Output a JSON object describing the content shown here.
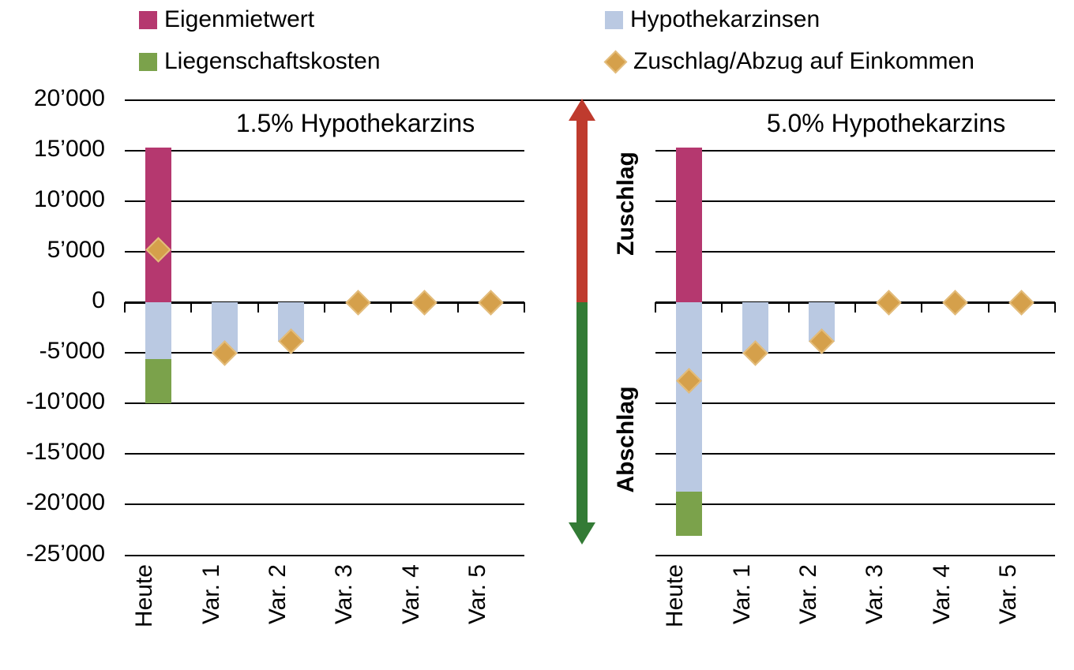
{
  "legend": {
    "items": [
      {
        "label": "Eigenmietwert",
        "swatch": "square",
        "color": "#b5386f"
      },
      {
        "label": "Liegenschaftskosten",
        "swatch": "square",
        "color": "#7ba24b"
      },
      {
        "label": "Hypothekarzinsen",
        "swatch": "square",
        "color": "#bac9e2"
      },
      {
        "label": "Zuschlag/Abzug auf Einkommen",
        "swatch": "diamond",
        "color": "#d5a04b"
      }
    ]
  },
  "chart_data": {
    "type": "bar",
    "subtype": "stacked-bars-with-diamond-markers",
    "categories": [
      "Heute",
      "Var. 1",
      "Var. 2",
      "Var. 3",
      "Var. 4",
      "Var. 5"
    ],
    "ylim": [
      -25000,
      20000
    ],
    "ytick_step": 5000,
    "ytick_labels": [
      "20’000",
      "15’000",
      "10’000",
      "5’000",
      "0",
      "-5’000",
      "-10’000",
      "-15’000",
      "-20’000",
      "-25’000"
    ],
    "grid": "horizontal",
    "legend_position": "top",
    "panels": [
      {
        "title": "1.5% Hypothekarzins",
        "series": [
          {
            "name": "Eigenmietwert",
            "color": "#b5386f",
            "values": [
              15300,
              0,
              0,
              0,
              0,
              0
            ]
          },
          {
            "name": "Hypothekarzinsen",
            "color": "#bac9e2",
            "values": [
              -5600,
              -5000,
              -3900,
              0,
              0,
              0
            ]
          },
          {
            "name": "Liegenschaftskosten",
            "color": "#7ba24b",
            "values": [
              -4400,
              0,
              0,
              0,
              0,
              0
            ]
          }
        ],
        "points": {
          "name": "Zuschlag/Abzug auf Einkommen",
          "color": "#d5a04b",
          "values": [
            5200,
            -5000,
            -3900,
            0,
            0,
            0
          ]
        }
      },
      {
        "title": "5.0% Hypothekarzins",
        "series": [
          {
            "name": "Eigenmietwert",
            "color": "#b5386f",
            "values": [
              15300,
              0,
              0,
              0,
              0,
              0
            ]
          },
          {
            "name": "Hypothekarzinsen",
            "color": "#bac9e2",
            "values": [
              -18700,
              -5000,
              -3900,
              0,
              0,
              0
            ]
          },
          {
            "name": "Liegenschaftskosten",
            "color": "#7ba24b",
            "values": [
              -4400,
              0,
              0,
              0,
              0,
              0
            ]
          }
        ],
        "points": {
          "name": "Zuschlag/Abzug auf Einkommen",
          "color": "#d5a04b",
          "values": [
            -7800,
            -5000,
            -3900,
            0,
            0,
            0
          ]
        }
      }
    ],
    "annotations": {
      "up_label": "Zuschlag",
      "up_color": "#bf3b2e",
      "down_label": "Abschlag",
      "down_color": "#337b35"
    }
  },
  "colors": {
    "background": "#ffffff",
    "grid": "#000000",
    "text": "#000000",
    "diamond_border": "#e3bc7a"
  }
}
